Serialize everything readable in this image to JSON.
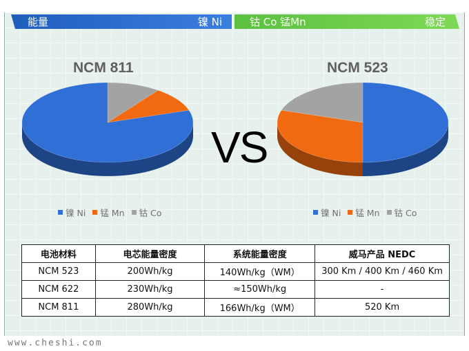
{
  "banner": {
    "left_label": "能量",
    "left_right_label": "镍 Ni",
    "right_left_label": "钴 Co 锰Mn",
    "right_label": "稳定"
  },
  "vs_text": "VS",
  "chart_data": [
    {
      "type": "pie",
      "title": "NCM 811",
      "categories": [
        "镍 Ni",
        "锰 Mn",
        "钴 Co"
      ],
      "values": [
        80,
        10,
        10
      ],
      "colors": [
        "#2f6fd6",
        "#f26a10",
        "#a3a3a3"
      ]
    },
    {
      "type": "pie",
      "title": "NCM 523",
      "categories": [
        "镍 Ni",
        "锰 Mn",
        "钴 Co"
      ],
      "values": [
        50,
        30,
        20
      ],
      "colors": [
        "#2f6fd6",
        "#f26a10",
        "#a3a3a3"
      ]
    }
  ],
  "table": {
    "headers": [
      "电池材料",
      "电芯能量密度",
      "系统能量密度",
      "威马产品 NEDC"
    ],
    "rows": [
      [
        "NCM 523",
        "200Wh/kg",
        "140Wh/kg（WM）",
        "300 Km / 400 Km / 460 Km"
      ],
      [
        "NCM 622",
        "230Wh/kg",
        "≈150Wh/kg",
        "-"
      ],
      [
        "NCM 811",
        "280Wh/kg",
        "166Wh/kg（WM）",
        "520 Km"
      ]
    ]
  },
  "footer": "www.cheshi.com"
}
